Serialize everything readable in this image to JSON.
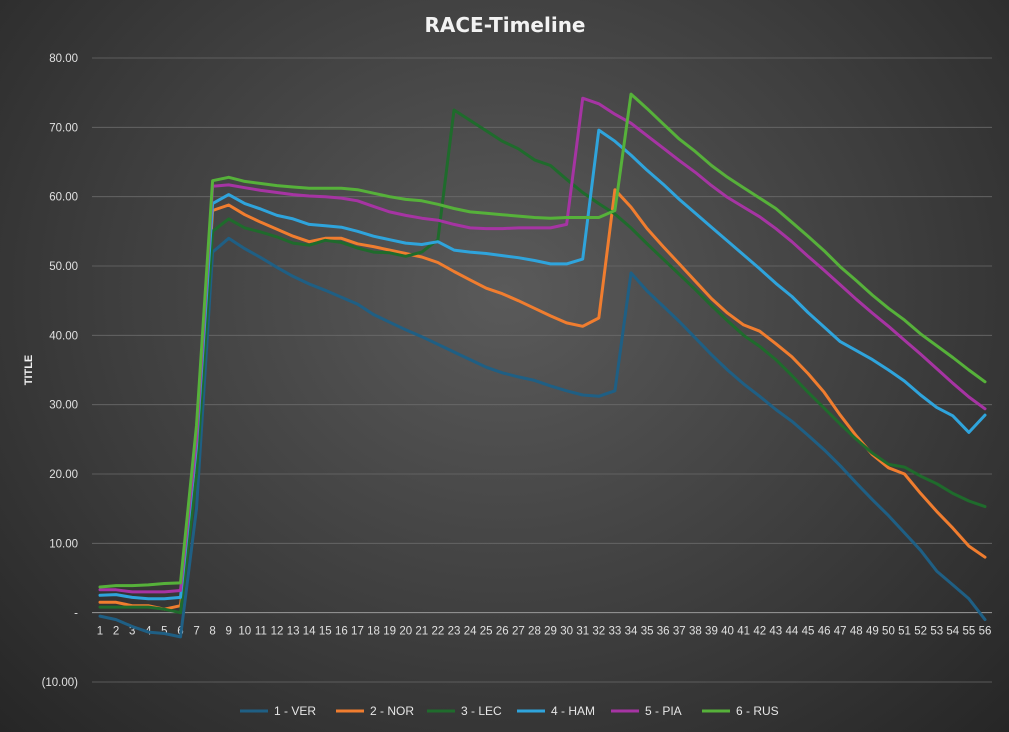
{
  "chart_data": {
    "type": "line",
    "title": "RACE-Timeline",
    "ylabel": "TITLE",
    "xlabel": "",
    "ylim": [
      -10,
      80
    ],
    "yticks": [
      -10,
      0,
      10,
      20,
      30,
      40,
      50,
      60,
      70,
      80
    ],
    "ytick_labels": [
      "(10.00)",
      "-",
      "10.00",
      "20.00",
      "30.00",
      "40.00",
      "50.00",
      "60.00",
      "70.00",
      "80.00"
    ],
    "x": [
      1,
      2,
      3,
      4,
      5,
      6,
      7,
      8,
      9,
      10,
      11,
      12,
      13,
      14,
      15,
      16,
      17,
      18,
      19,
      20,
      21,
      22,
      23,
      24,
      25,
      26,
      27,
      28,
      29,
      30,
      31,
      32,
      33,
      34,
      35,
      36,
      37,
      38,
      39,
      40,
      41,
      42,
      43,
      44,
      45,
      46,
      47,
      48,
      49,
      50,
      51,
      52,
      53,
      54,
      55,
      56
    ],
    "legend_position": "bottom",
    "grid": true,
    "series": [
      {
        "name": "1 - VER",
        "color": "#1f5f84",
        "values": [
          -0.5,
          -1.0,
          -2.0,
          -2.8,
          -3.0,
          -3.5,
          15.0,
          52.0,
          54.0,
          52.5,
          51.2,
          49.8,
          48.5,
          47.4,
          46.5,
          45.5,
          44.5,
          43.0,
          41.9,
          40.8,
          39.8,
          38.7,
          37.6,
          36.5,
          35.4,
          34.6,
          34.0,
          33.5,
          32.7,
          32.0,
          31.4,
          31.2,
          32.0,
          49.0,
          46.4,
          44.2,
          42.0,
          39.6,
          37.2,
          35.0,
          33.0,
          31.2,
          29.3,
          27.6,
          25.6,
          23.5,
          21.2,
          18.7,
          16.3,
          14.0,
          11.5,
          9.0,
          6.0,
          4.0,
          2.0,
          -1.0
        ]
      },
      {
        "name": "2 - NOR",
        "color": "#f07d2f",
        "values": [
          1.5,
          1.5,
          1.0,
          1.0,
          0.5,
          1.0,
          22.0,
          58.0,
          58.8,
          57.4,
          56.3,
          55.3,
          54.3,
          53.5,
          54.0,
          54.0,
          53.2,
          52.8,
          52.3,
          51.8,
          51.3,
          50.5,
          49.2,
          48.0,
          46.8,
          46.0,
          45.0,
          43.9,
          42.8,
          41.8,
          41.3,
          42.5,
          61.0,
          58.5,
          55.4,
          52.8,
          50.3,
          47.8,
          45.3,
          43.2,
          41.5,
          40.6,
          38.8,
          36.9,
          34.5,
          31.8,
          28.5,
          25.5,
          22.8,
          20.9,
          20.0,
          17.2,
          14.6,
          12.2,
          9.6,
          8.0
        ]
      },
      {
        "name": "3 - LEC",
        "color": "#1f6b2c",
        "values": [
          0.8,
          0.8,
          0.8,
          0.8,
          0.5,
          0.0,
          20.0,
          55.0,
          56.8,
          55.5,
          54.9,
          54.2,
          53.3,
          53.0,
          53.7,
          53.4,
          52.6,
          52.0,
          51.9,
          51.4,
          52.0,
          53.8,
          72.5,
          71.0,
          69.5,
          68.0,
          66.9,
          65.3,
          64.5,
          62.5,
          60.6,
          59.0,
          57.5,
          55.5,
          53.2,
          51.0,
          48.8,
          46.6,
          44.3,
          42.1,
          40.0,
          38.4,
          36.5,
          34.2,
          31.8,
          29.5,
          27.2,
          25.0,
          23.0,
          21.4,
          21.0,
          19.7,
          18.6,
          17.2,
          16.1,
          15.3
        ]
      },
      {
        "name": "4 - HAM",
        "color": "#2fa4dc",
        "values": [
          2.5,
          2.6,
          2.2,
          2.0,
          2.0,
          2.2,
          24.0,
          59.0,
          60.3,
          59.0,
          58.2,
          57.3,
          56.8,
          56.0,
          55.8,
          55.6,
          55.0,
          54.3,
          53.8,
          53.3,
          53.1,
          53.5,
          52.3,
          52.0,
          51.8,
          51.5,
          51.2,
          50.8,
          50.3,
          50.3,
          51.0,
          69.6,
          68.0,
          66.0,
          63.8,
          61.8,
          59.6,
          57.6,
          55.6,
          53.6,
          51.6,
          49.6,
          47.5,
          45.6,
          43.3,
          41.2,
          39.1,
          37.8,
          36.5,
          35.0,
          33.4,
          31.4,
          29.6,
          28.4,
          26.0,
          28.5
        ]
      },
      {
        "name": "5 - PIA",
        "color": "#a634a3",
        "values": [
          3.3,
          3.3,
          3.0,
          3.0,
          3.0,
          3.2,
          25.0,
          61.5,
          61.7,
          61.3,
          60.9,
          60.6,
          60.3,
          60.1,
          60.0,
          59.8,
          59.4,
          58.6,
          57.8,
          57.3,
          56.9,
          56.6,
          56.0,
          55.5,
          55.4,
          55.4,
          55.5,
          55.5,
          55.5,
          56.0,
          74.2,
          73.4,
          71.9,
          70.6,
          68.8,
          67.0,
          65.2,
          63.5,
          61.6,
          59.9,
          58.5,
          57.1,
          55.4,
          53.5,
          51.4,
          49.4,
          47.3,
          45.2,
          43.2,
          41.3,
          39.3,
          37.3,
          35.2,
          33.1,
          31.1,
          29.4
        ]
      },
      {
        "name": "6 - RUS",
        "color": "#56b13a",
        "values": [
          3.7,
          3.9,
          3.9,
          4.0,
          4.2,
          4.3,
          27.0,
          62.3,
          62.8,
          62.2,
          61.9,
          61.6,
          61.4,
          61.2,
          61.2,
          61.2,
          61.0,
          60.5,
          60.0,
          59.6,
          59.4,
          58.9,
          58.3,
          57.8,
          57.6,
          57.4,
          57.2,
          57.0,
          56.9,
          57.0,
          57.0,
          57.0,
          58.0,
          74.8,
          72.7,
          70.5,
          68.3,
          66.5,
          64.5,
          62.8,
          61.3,
          59.8,
          58.3,
          56.3,
          54.3,
          52.2,
          49.9,
          47.9,
          45.8,
          43.9,
          42.2,
          40.2,
          38.5,
          36.8,
          35.0,
          33.3
        ]
      }
    ]
  }
}
